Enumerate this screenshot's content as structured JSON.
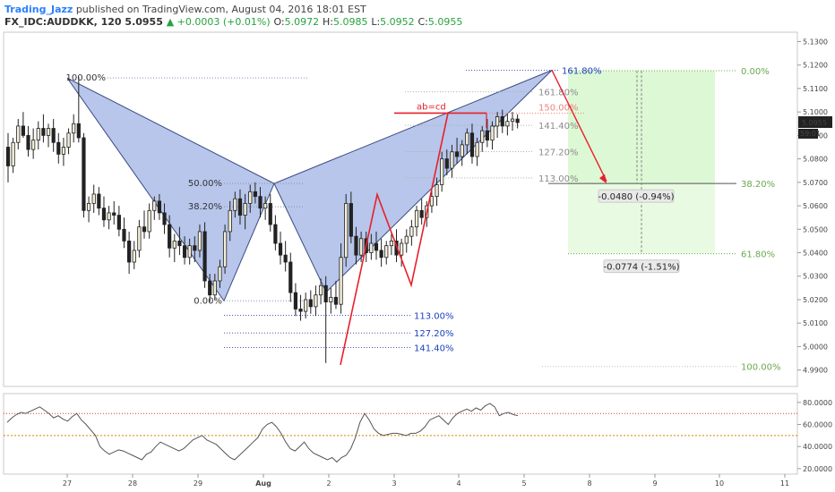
{
  "header": {
    "author": "Trading_Jazz",
    "published_text": "published on TradingView.com, August 04, 2016 18:01 EST",
    "symbol": "FX_IDC:AUDDKK, 120",
    "last": "5.0955",
    "change": "▲ +0.0003 (+0.01%)",
    "o_label": "O:",
    "o_value": "5.0972",
    "h_label": "H:",
    "h_value": "5.0985",
    "l_label": "L:",
    "l_value": "5.0952",
    "c_label": "C:",
    "c_value": "5.0955"
  },
  "colors": {
    "pattern_fill": "#7b98d8",
    "up_candle": "#f5efd8",
    "down_candle": "#222222",
    "target_zone": "#d9f7d0",
    "abcd": "#e8202a",
    "fib_blue": "#1a3fbf",
    "fib_grey": "#8a8a8a",
    "fib_green": "#6aa84f",
    "rsi_line": "#555555"
  },
  "chart_data": [
    {
      "type": "candlestick",
      "title": "",
      "xlabel": "",
      "ylabel": "",
      "x_tick_labels": [
        "27",
        "28",
        "29",
        "Aug",
        "2",
        "3",
        "4",
        "5",
        "8",
        "9",
        "10",
        "11"
      ],
      "y_ticks": [
        4.99,
        5.0,
        5.01,
        5.02,
        5.03,
        5.04,
        5.05,
        5.06,
        5.07,
        5.08,
        5.09,
        5.1,
        5.11,
        5.12,
        5.13
      ],
      "y_tick_labels": [
        "4.9900",
        "5.0000",
        "5.0100",
        "5.0200",
        "5.0300",
        "5.0400",
        "5.0500",
        "5.0600",
        "5.0700",
        "5.0800",
        "5.0900",
        "5.1000",
        "5.1100",
        "5.1200",
        "5.1300"
      ],
      "ylim": [
        4.983,
        5.134
      ],
      "price_label": "5.0955",
      "countdown_label": "59:01",
      "candles": [
        [
          5.085,
          5.091,
          5.07,
          5.077
        ],
        [
          5.077,
          5.089,
          5.074,
          5.087
        ],
        [
          5.087,
          5.097,
          5.084,
          5.094
        ],
        [
          5.094,
          5.1,
          5.089,
          5.09
        ],
        [
          5.09,
          5.094,
          5.081,
          5.084
        ],
        [
          5.084,
          5.093,
          5.08,
          5.088
        ],
        [
          5.088,
          5.096,
          5.084,
          5.093
        ],
        [
          5.093,
          5.099,
          5.087,
          5.09
        ],
        [
          5.09,
          5.095,
          5.085,
          5.093
        ],
        [
          5.093,
          5.097,
          5.083,
          5.087
        ],
        [
          5.087,
          5.091,
          5.078,
          5.082
        ],
        [
          5.082,
          5.089,
          5.077,
          5.085
        ],
        [
          5.085,
          5.093,
          5.082,
          5.091
        ],
        [
          5.091,
          5.099,
          5.087,
          5.095
        ],
        [
          5.095,
          5.115,
          5.087,
          5.089
        ],
        [
          5.089,
          5.091,
          5.055,
          5.058
        ],
        [
          5.058,
          5.064,
          5.053,
          5.061
        ],
        [
          5.061,
          5.069,
          5.057,
          5.065
        ],
        [
          5.065,
          5.068,
          5.056,
          5.059
        ],
        [
          5.059,
          5.064,
          5.051,
          5.054
        ],
        [
          5.054,
          5.06,
          5.05,
          5.057
        ],
        [
          5.057,
          5.062,
          5.052,
          5.056
        ],
        [
          5.056,
          5.06,
          5.047,
          5.05
        ],
        [
          5.05,
          5.055,
          5.042,
          5.045
        ],
        [
          5.045,
          5.049,
          5.031,
          5.036
        ],
        [
          5.036,
          5.045,
          5.033,
          5.041
        ],
        [
          5.041,
          5.054,
          5.038,
          5.051
        ],
        [
          5.051,
          5.058,
          5.046,
          5.049
        ],
        [
          5.049,
          5.061,
          5.046,
          5.058
        ],
        [
          5.058,
          5.064,
          5.054,
          5.062
        ],
        [
          5.062,
          5.065,
          5.054,
          5.057
        ],
        [
          5.057,
          5.061,
          5.048,
          5.052
        ],
        [
          5.052,
          5.056,
          5.038,
          5.042
        ],
        [
          5.042,
          5.048,
          5.036,
          5.045
        ],
        [
          5.045,
          5.051,
          5.039,
          5.043
        ],
        [
          5.043,
          5.047,
          5.035,
          5.038
        ],
        [
          5.038,
          5.046,
          5.035,
          5.043
        ],
        [
          5.043,
          5.047,
          5.036,
          5.041
        ],
        [
          5.041,
          5.052,
          5.038,
          5.049
        ],
        [
          5.049,
          5.053,
          5.025,
          5.028
        ],
        [
          5.028,
          5.031,
          5.019,
          5.022
        ],
        [
          5.022,
          5.031,
          5.02,
          5.028
        ],
        [
          5.028,
          5.037,
          5.025,
          5.034
        ],
        [
          5.034,
          5.052,
          5.031,
          5.049
        ],
        [
          5.049,
          5.062,
          5.045,
          5.058
        ],
        [
          5.058,
          5.066,
          5.055,
          5.063
        ],
        [
          5.063,
          5.067,
          5.052,
          5.056
        ],
        [
          5.056,
          5.065,
          5.05,
          5.061
        ],
        [
          5.061,
          5.069,
          5.057,
          5.066
        ],
        [
          5.066,
          5.07,
          5.061,
          5.064
        ],
        [
          5.064,
          5.068,
          5.055,
          5.059
        ],
        [
          5.059,
          5.064,
          5.054,
          5.061
        ],
        [
          5.061,
          5.065,
          5.049,
          5.052
        ],
        [
          5.052,
          5.056,
          5.041,
          5.044
        ],
        [
          5.044,
          5.049,
          5.035,
          5.039
        ],
        [
          5.039,
          5.045,
          5.032,
          5.036
        ],
        [
          5.036,
          5.04,
          5.019,
          5.023
        ],
        [
          5.023,
          5.027,
          5.013,
          5.016
        ],
        [
          5.016,
          5.022,
          5.011,
          5.015
        ],
        [
          5.015,
          5.023,
          5.012,
          5.02
        ],
        [
          5.02,
          5.024,
          5.014,
          5.017
        ],
        [
          5.017,
          5.026,
          5.013,
          5.022
        ],
        [
          5.022,
          5.029,
          5.018,
          5.026
        ],
        [
          5.026,
          5.03,
          4.993,
          5.019
        ],
        [
          5.019,
          5.025,
          5.014,
          5.021
        ],
        [
          5.021,
          5.028,
          5.016,
          5.018
        ],
        [
          5.018,
          5.044,
          5.014,
          5.038
        ],
        [
          5.038,
          5.065,
          5.034,
          5.061
        ],
        [
          5.061,
          5.066,
          5.044,
          5.047
        ],
        [
          5.047,
          5.051,
          5.035,
          5.039
        ],
        [
          5.039,
          5.049,
          5.036,
          5.046
        ],
        [
          5.046,
          5.049,
          5.036,
          5.04
        ],
        [
          5.04,
          5.048,
          5.037,
          5.044
        ],
        [
          5.044,
          5.049,
          5.037,
          5.041
        ],
        [
          5.041,
          5.046,
          5.034,
          5.038
        ],
        [
          5.038,
          5.045,
          5.035,
          5.043
        ],
        [
          5.043,
          5.048,
          5.039,
          5.045
        ],
        [
          5.045,
          5.05,
          5.036,
          5.039
        ],
        [
          5.039,
          5.046,
          5.034,
          5.044
        ],
        [
          5.044,
          5.05,
          5.04,
          5.047
        ],
        [
          5.047,
          5.054,
          5.043,
          5.051
        ],
        [
          5.051,
          5.06,
          5.047,
          5.058
        ],
        [
          5.058,
          5.063,
          5.052,
          5.055
        ],
        [
          5.055,
          5.062,
          5.051,
          5.06
        ],
        [
          5.06,
          5.067,
          5.057,
          5.064
        ],
        [
          5.064,
          5.072,
          5.06,
          5.069
        ],
        [
          5.069,
          5.083,
          5.066,
          5.08
        ],
        [
          5.08,
          5.084,
          5.073,
          5.076
        ],
        [
          5.076,
          5.086,
          5.072,
          5.083
        ],
        [
          5.083,
          5.089,
          5.078,
          5.081
        ],
        [
          5.081,
          5.088,
          5.077,
          5.086
        ],
        [
          5.086,
          5.093,
          5.082,
          5.091
        ],
        [
          5.091,
          5.095,
          5.078,
          5.081
        ],
        [
          5.081,
          5.089,
          5.077,
          5.087
        ],
        [
          5.087,
          5.094,
          5.083,
          5.092
        ],
        [
          5.092,
          5.097,
          5.085,
          5.088
        ],
        [
          5.088,
          5.096,
          5.084,
          5.094
        ],
        [
          5.094,
          5.1,
          5.089,
          5.098
        ],
        [
          5.098,
          5.101,
          5.091,
          5.094
        ],
        [
          5.094,
          5.099,
          5.09,
          5.096
        ],
        [
          5.096,
          5.1,
          5.092,
          5.097
        ],
        [
          5.097,
          5.099,
          5.093,
          5.0955
        ]
      ],
      "annotations": {
        "pattern_levels": [
          "100.00%",
          "50.00%",
          "38.20%",
          "0.00%"
        ],
        "extension_levels_blue": [
          "113.00%",
          "127.20%",
          "141.40%"
        ],
        "extension_levels_grey": [
          "161.80%",
          "141.40%",
          "127.20%",
          "113.00%"
        ],
        "extension_top_label": "161.80%",
        "abcd_label": "ab=cd",
        "abcd_level_label": "150.00%",
        "target_levels": [
          "0.00%",
          "38.20%",
          "61.80%",
          "100.00%"
        ],
        "measure_1": "-0.0480 (-0.94%)",
        "measure_2": "-0.0774 (-1.51%)"
      }
    },
    {
      "type": "line",
      "title": "",
      "xlabel": "",
      "ylabel": "",
      "y_ticks": [
        20,
        40,
        60,
        80
      ],
      "y_tick_labels": [
        "20.0000",
        "40.0000",
        "60.0000",
        "80.0000"
      ],
      "ylim": [
        15,
        88
      ],
      "reference_levels": [
        70,
        50
      ],
      "series": [
        {
          "values": [
            62,
            66,
            69,
            71,
            70,
            72,
            74,
            76,
            73,
            70,
            66,
            68,
            65,
            63,
            67,
            70,
            64,
            60,
            55,
            50,
            40,
            36,
            33,
            35,
            37,
            36,
            34,
            32,
            30,
            28,
            33,
            35,
            40,
            44,
            42,
            40,
            38,
            36,
            38,
            42,
            46,
            48,
            50,
            46,
            44,
            42,
            38,
            34,
            30,
            28,
            32,
            36,
            40,
            44,
            48,
            56,
            60,
            62,
            58,
            52,
            44,
            38,
            36,
            40,
            44,
            38,
            34,
            32,
            30,
            28,
            30,
            26,
            30,
            32,
            38,
            48,
            62,
            70,
            64,
            56,
            52,
            50,
            51,
            52,
            52,
            51,
            50,
            52,
            52,
            54,
            58,
            64,
            66,
            68,
            64,
            60,
            66,
            70,
            72,
            74,
            72,
            75,
            73,
            77,
            79,
            76,
            68,
            70,
            71,
            69,
            68
          ]
        }
      ]
    }
  ]
}
